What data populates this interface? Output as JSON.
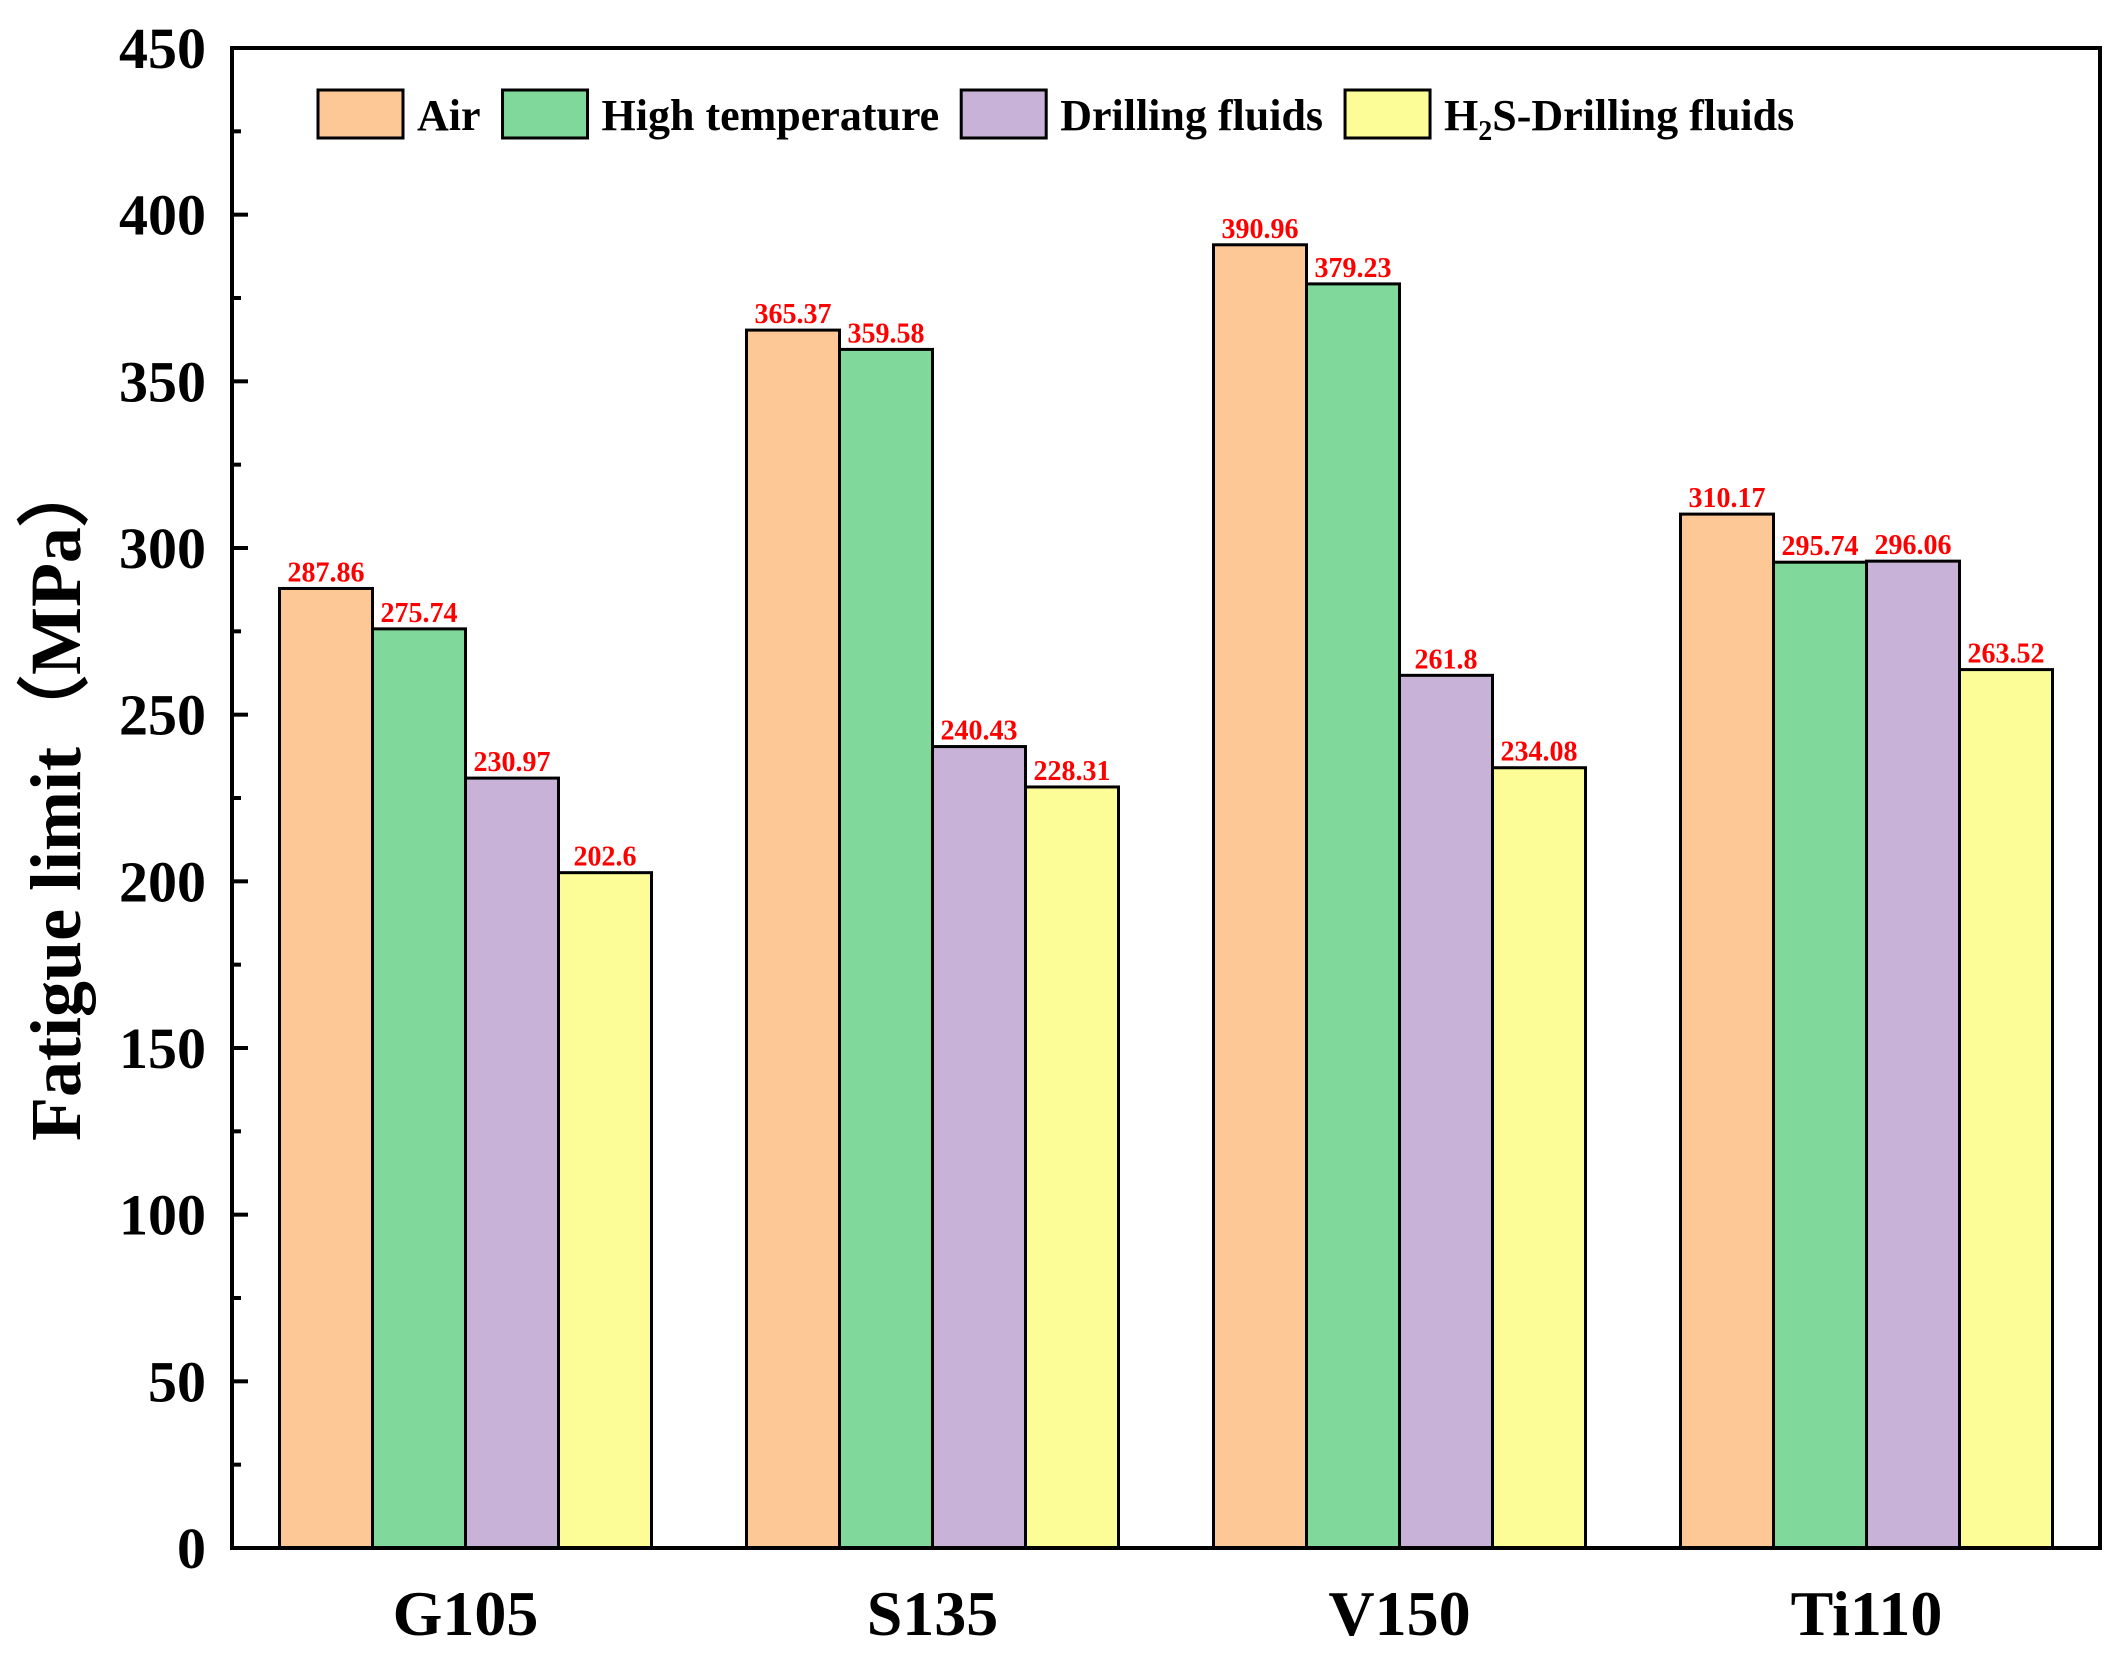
{
  "colors": {
    "label": "#ff0000",
    "axis": "#000000",
    "bar_stroke": "#000000"
  },
  "chart_data": {
    "type": "bar",
    "title": "",
    "xlabel": "",
    "ylabel": "Fatigue limit（MPa）",
    "ylim": [
      0,
      450
    ],
    "yticks": [
      "0",
      "50",
      "100",
      "150",
      "200",
      "250",
      "300",
      "350",
      "400",
      "450"
    ],
    "categories": [
      "G105",
      "S135",
      "V150",
      "Ti110"
    ],
    "legend_position": "top",
    "series": [
      {
        "name": "Air",
        "color": "#fdc896",
        "values": [
          287.86,
          365.37,
          390.96,
          310.17
        ],
        "labels": [
          "287.86",
          "365.37",
          "390.96",
          "310.17"
        ]
      },
      {
        "name": "High temperature",
        "color": "#80d89a",
        "values": [
          275.74,
          359.58,
          379.23,
          295.74
        ],
        "labels": [
          "275.74",
          "359.58",
          "379.23",
          "295.74"
        ]
      },
      {
        "name": "Drilling fluids",
        "color": "#c8b2d7",
        "values": [
          230.97,
          240.43,
          261.8,
          296.06
        ],
        "labels": [
          "230.97",
          "240.43",
          "261.8",
          "296.06"
        ]
      },
      {
        "name": "H2S-Drilling fluids",
        "name_parts": [
          "H",
          "2",
          "S-Drilling fluids"
        ],
        "color": "#fdfd98",
        "values": [
          202.6,
          228.31,
          234.08,
          263.52
        ],
        "labels": [
          "202.6",
          "228.31",
          "234.08",
          "263.52"
        ]
      }
    ]
  }
}
